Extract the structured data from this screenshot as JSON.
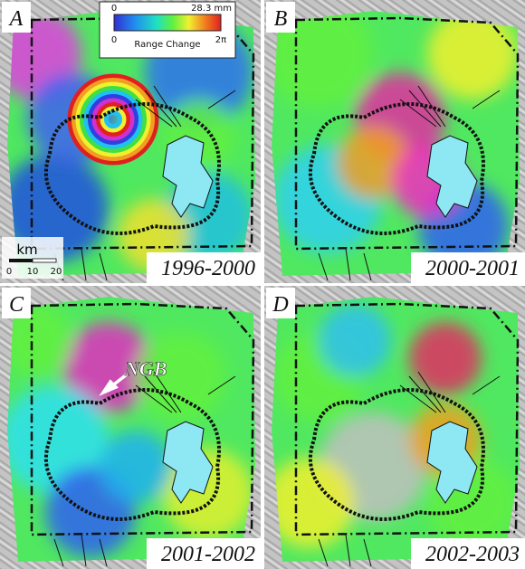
{
  "panels": [
    {
      "letter": "A",
      "period": "1996-2000"
    },
    {
      "letter": "B",
      "period": "2000-2001"
    },
    {
      "letter": "C",
      "period": "2001-2002"
    },
    {
      "letter": "D",
      "period": "2002-2003"
    }
  ],
  "colorbar": {
    "top_left": "0",
    "top_right": "28.3 mm",
    "bottom_left": "0",
    "title": "Range Change",
    "bottom_right": "2π"
  },
  "scale_bar": {
    "unit": "km",
    "ticks": [
      "0",
      "10",
      "20"
    ]
  },
  "annotation": {
    "label": "NGB"
  }
}
